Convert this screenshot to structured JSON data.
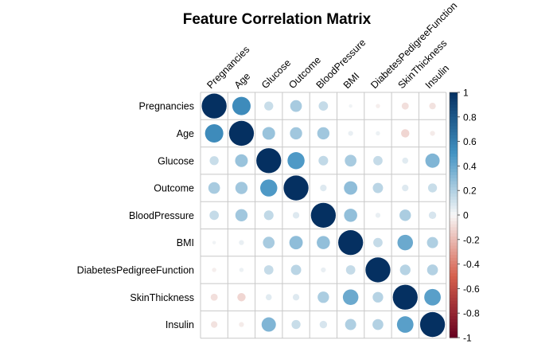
{
  "chart_data": {
    "type": "heatmap",
    "title": "Feature Correlation Matrix",
    "rows": [
      "Pregnancies",
      "Age",
      "Glucose",
      "Outcome",
      "BloodPressure",
      "BMI",
      "DiabetesPedigreeFunction",
      "SkinThickness",
      "Insulin"
    ],
    "columns": [
      "Pregnancies",
      "Age",
      "Glucose",
      "Outcome",
      "BloodPressure",
      "BMI",
      "DiabetesPedigreeFunction",
      "SkinThickness",
      "Insulin"
    ],
    "values": [
      [
        1.0,
        0.54,
        0.13,
        0.22,
        0.14,
        0.02,
        -0.03,
        -0.08,
        -0.07
      ],
      [
        0.54,
        1.0,
        0.26,
        0.24,
        0.24,
        0.04,
        0.03,
        -0.11,
        -0.04
      ],
      [
        0.13,
        0.26,
        1.0,
        0.47,
        0.15,
        0.22,
        0.14,
        0.06,
        0.33
      ],
      [
        0.22,
        0.24,
        0.47,
        1.0,
        0.07,
        0.29,
        0.17,
        0.07,
        0.13
      ],
      [
        0.14,
        0.24,
        0.15,
        0.07,
        1.0,
        0.28,
        0.04,
        0.21,
        0.09
      ],
      [
        0.02,
        0.04,
        0.22,
        0.29,
        0.28,
        1.0,
        0.14,
        0.39,
        0.2
      ],
      [
        -0.03,
        0.03,
        0.14,
        0.17,
        0.04,
        0.14,
        1.0,
        0.18,
        0.19
      ],
      [
        -0.08,
        -0.11,
        0.06,
        0.07,
        0.21,
        0.39,
        0.18,
        1.0,
        0.44
      ],
      [
        -0.07,
        -0.04,
        0.33,
        0.13,
        0.09,
        0.2,
        0.19,
        0.44,
        1.0
      ]
    ],
    "colorbar": {
      "range": [
        -1,
        1
      ],
      "ticks": [
        "1",
        "0.8",
        "0.6",
        "0.4",
        "0.2",
        "0",
        "-0.2",
        "-0.4",
        "-0.6",
        "-0.8",
        "-1"
      ],
      "colors": {
        "neg": "#67001f",
        "negmid": "#d6604d",
        "mid": "#f7f7f7",
        "posmid": "#4393c3",
        "pos": "#053061"
      }
    },
    "grid": true,
    "legend_position": "right"
  }
}
